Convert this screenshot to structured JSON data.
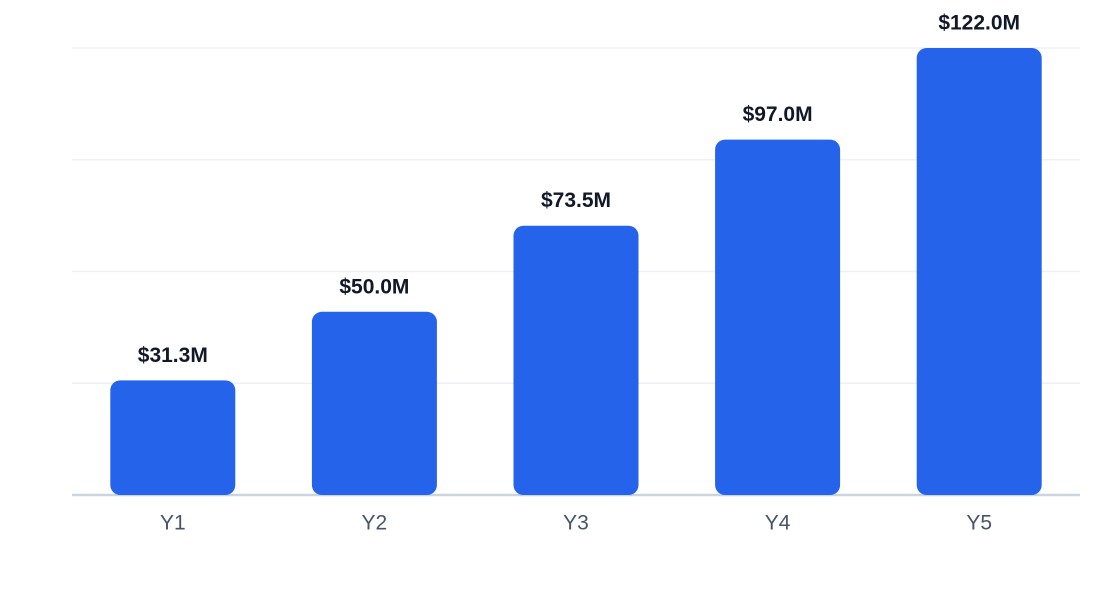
{
  "chart_data": {
    "type": "bar",
    "categories": [
      "Y1",
      "Y2",
      "Y3",
      "Y4",
      "Y5"
    ],
    "values": [
      31.3,
      50.0,
      73.5,
      97.0,
      122.0
    ],
    "value_labels": [
      "$31.3M",
      "$50.0M",
      "$73.5M",
      "$97.0M",
      "$122.0M"
    ],
    "color": "#2563eb",
    "ylim": [
      0,
      122
    ],
    "yticks": [
      0,
      30.5,
      61,
      91.5,
      122
    ],
    "grid": true
  }
}
